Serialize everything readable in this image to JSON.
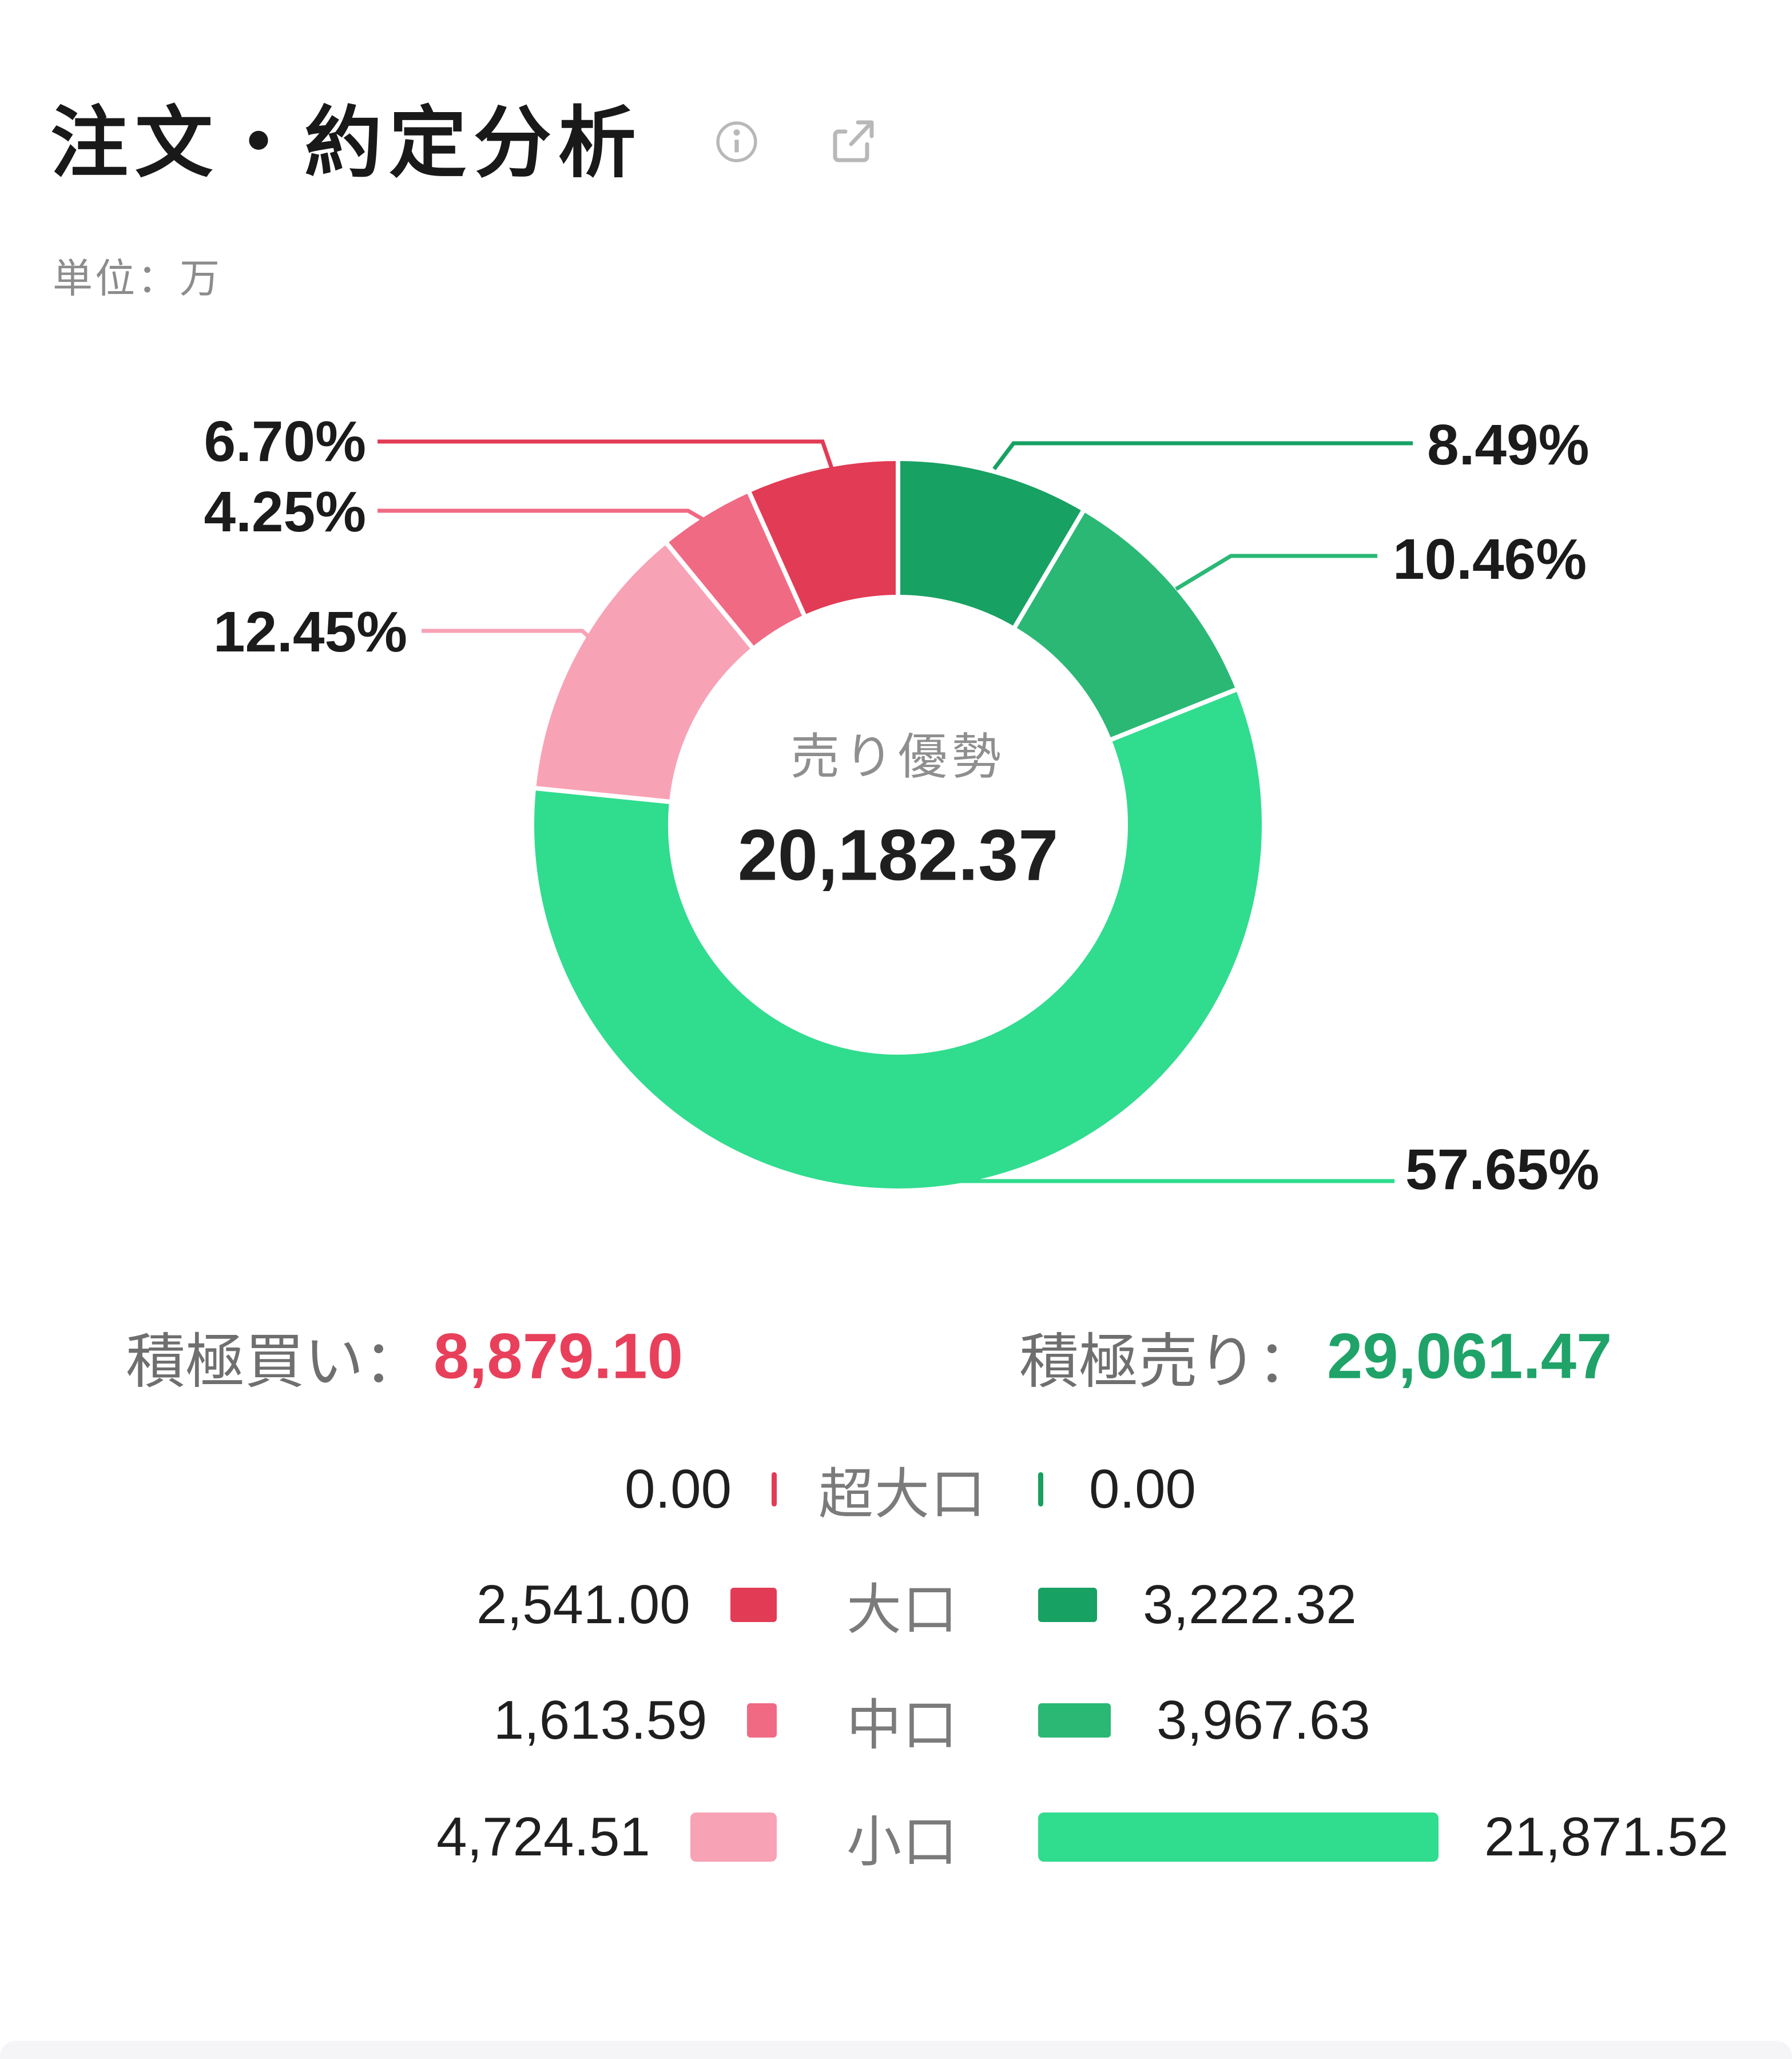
{
  "header": {
    "title": "注文・約定分析"
  },
  "unit_label": "単位：万",
  "chart_data": {
    "type": "pie",
    "subtype": "donut",
    "unit": "万",
    "center": {
      "status_label": "売り優勢",
      "total_value": "20,182.37"
    },
    "segments": [
      {
        "name": "sell-large",
        "group": "大口",
        "side": "sell",
        "value_pct": 8.49,
        "label": "8.49%",
        "color": "#17a163"
      },
      {
        "name": "sell-medium",
        "group": "中口",
        "side": "sell",
        "value_pct": 10.46,
        "label": "10.46%",
        "color": "#2bb875"
      },
      {
        "name": "sell-small",
        "group": "小口",
        "side": "sell",
        "value_pct": 57.65,
        "label": "57.65%",
        "color": "#30dc8e"
      },
      {
        "name": "buy-small",
        "group": "小口",
        "side": "buy",
        "value_pct": 12.45,
        "label": "12.45%",
        "color": "#f8a2b6"
      },
      {
        "name": "buy-medium",
        "group": "中口",
        "side": "buy",
        "value_pct": 4.25,
        "label": "4.25%",
        "color": "#f06a84"
      },
      {
        "name": "buy-large",
        "group": "大口",
        "side": "buy",
        "value_pct": 6.7,
        "label": "6.70%",
        "color": "#e23b55"
      }
    ],
    "totals": {
      "buy_label": "積極買い：",
      "buy_value": "8,879.10",
      "buy_color": "#e8405b",
      "sell_label": "積極売り：",
      "sell_value": "29,061.47",
      "sell_color": "#1fa369"
    },
    "legend": {
      "position": "bottom",
      "rows": [
        {
          "label": "超大口",
          "buy_text": "0.00",
          "buy_value": 0,
          "buy_color": "#e23b55",
          "sell_text": "0.00",
          "sell_value": 0,
          "sell_color": "#17a05e"
        },
        {
          "label": "大口",
          "buy_text": "2,541.00",
          "buy_value": 2541.0,
          "buy_color": "#e23b55",
          "sell_text": "3,222.32",
          "sell_value": 3222.32,
          "sell_color": "#17a163"
        },
        {
          "label": "中口",
          "buy_text": "1,613.59",
          "buy_value": 1613.59,
          "buy_color": "#f06a84",
          "sell_text": "3,967.63",
          "sell_value": 3967.63,
          "sell_color": "#2bb875"
        },
        {
          "label": "小口",
          "buy_text": "4,724.51",
          "buy_value": 4724.51,
          "buy_color": "#f8a2b6",
          "sell_text": "21,871.52",
          "sell_value": 21871.52,
          "sell_color": "#30dc8e"
        }
      ]
    }
  }
}
